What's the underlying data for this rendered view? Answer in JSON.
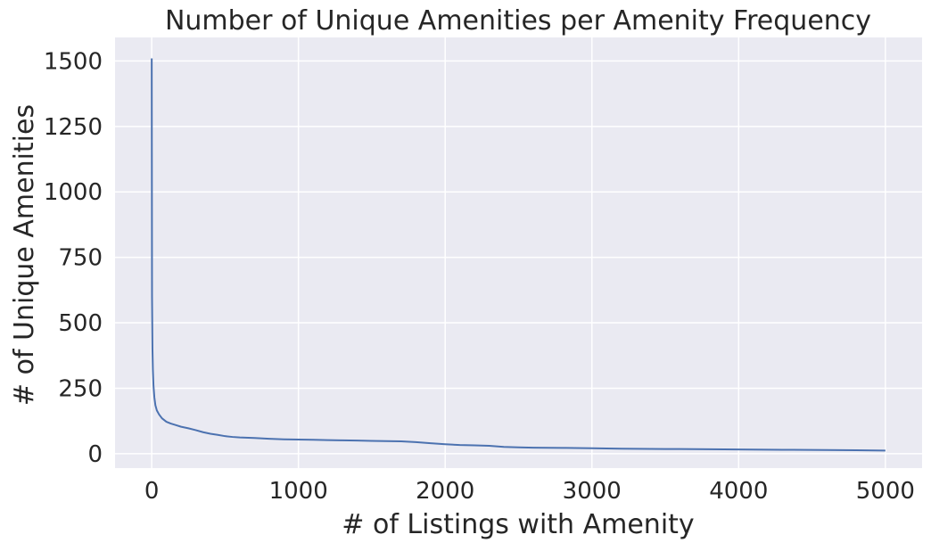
{
  "chart_data": {
    "type": "line",
    "title": "Number of Unique Amenities per Amenity Frequency",
    "xlabel": "# of Listings with Amenity",
    "ylabel": "# of Unique Amenities",
    "xlim": [
      -250,
      5250
    ],
    "ylim": [
      -55,
      1590
    ],
    "xticks": [
      0,
      1000,
      2000,
      3000,
      4000,
      5000
    ],
    "yticks": [
      0,
      250,
      500,
      750,
      1000,
      1250,
      1500
    ],
    "grid": true,
    "legend": "none",
    "series": [
      {
        "name": "amenities",
        "color": "#4c72b0",
        "x": [
          0,
          2,
          5,
          8,
          12,
          18,
          25,
          35,
          50,
          70,
          100,
          130,
          160,
          200,
          250,
          300,
          350,
          400,
          450,
          500,
          550,
          600,
          700,
          800,
          900,
          1000,
          1100,
          1200,
          1300,
          1400,
          1500,
          1600,
          1700,
          1800,
          1900,
          2000,
          2100,
          2200,
          2250,
          2300,
          2400,
          2500,
          2600,
          2800,
          3000,
          3100,
          3200,
          3500,
          3800,
          4000,
          4300,
          4600,
          4800,
          5000
        ],
        "y": [
          1510,
          600,
          400,
          320,
          260,
          215,
          185,
          165,
          150,
          135,
          122,
          115,
          110,
          103,
          97,
          90,
          82,
          76,
          72,
          67,
          64,
          62,
          60,
          57,
          55,
          54,
          53,
          52,
          51,
          50,
          49,
          48,
          47,
          44,
          40,
          36,
          33,
          32,
          31,
          30,
          26,
          24,
          23,
          22,
          21,
          20,
          19,
          18,
          17,
          16,
          15,
          14,
          13,
          12
        ]
      }
    ]
  }
}
